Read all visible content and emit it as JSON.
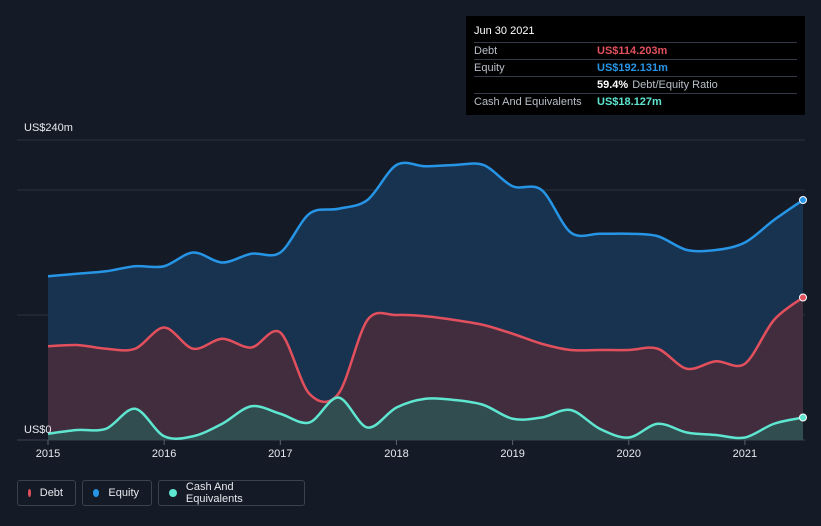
{
  "colors": {
    "debt": "#e2505d",
    "equity": "#2795e6",
    "cash": "#5ee6d0",
    "background": "#151b26",
    "grid": "#2a313d"
  },
  "tooltip": {
    "date": "Jun 30 2021",
    "debt_label": "Debt",
    "debt_value": "US$114.203m",
    "equity_label": "Equity",
    "equity_value": "US$192.131m",
    "ratio_value": "59.4%",
    "ratio_label": "Debt/Equity Ratio",
    "cash_label": "Cash And Equivalents",
    "cash_value": "US$18.127m"
  },
  "legend": {
    "debt": "Debt",
    "equity": "Equity",
    "cash": "Cash And Equivalents"
  },
  "chart_data": {
    "type": "area",
    "y_top_label": "US$240m",
    "y_bottom_label": "US$0",
    "ylim": [
      0,
      240
    ],
    "xlim": [
      2015.0,
      2021.5
    ],
    "x_ticks": [
      "2015",
      "2016",
      "2017",
      "2018",
      "2019",
      "2020",
      "2021"
    ],
    "series": [
      {
        "name": "Equity",
        "color": "#2795e6",
        "x": [
          2015.0,
          2015.25,
          2015.5,
          2015.75,
          2016.0,
          2016.25,
          2016.5,
          2016.75,
          2017.0,
          2017.25,
          2017.5,
          2017.75,
          2018.0,
          2018.25,
          2018.5,
          2018.75,
          2019.0,
          2019.25,
          2019.5,
          2019.75,
          2020.0,
          2020.25,
          2020.5,
          2020.75,
          2021.0,
          2021.25,
          2021.5
        ],
        "values": [
          131,
          133,
          135,
          139,
          139,
          150,
          142,
          149,
          150,
          181,
          185,
          192,
          220,
          219,
          220,
          220,
          203,
          200,
          166,
          165,
          165,
          163,
          152,
          152,
          158,
          176,
          192
        ]
      },
      {
        "name": "Debt",
        "color": "#e2505d",
        "x": [
          2015.0,
          2015.25,
          2015.5,
          2015.75,
          2016.0,
          2016.25,
          2016.5,
          2016.75,
          2017.0,
          2017.25,
          2017.5,
          2017.75,
          2018.0,
          2018.25,
          2018.5,
          2018.75,
          2019.0,
          2019.25,
          2019.5,
          2019.75,
          2020.0,
          2020.25,
          2020.5,
          2020.75,
          2021.0,
          2021.25,
          2021.5
        ],
        "values": [
          75,
          76,
          73,
          73,
          90,
          73,
          81,
          74,
          86,
          37,
          37,
          96,
          100,
          99,
          96,
          92,
          85,
          77,
          72,
          72,
          72,
          73,
          57,
          63,
          61,
          96,
          114
        ]
      },
      {
        "name": "Cash And Equivalents",
        "color": "#5ee6d0",
        "x": [
          2015.0,
          2015.25,
          2015.5,
          2015.75,
          2016.0,
          2016.25,
          2016.5,
          2016.75,
          2017.0,
          2017.25,
          2017.5,
          2017.75,
          2018.0,
          2018.25,
          2018.5,
          2018.75,
          2019.0,
          2019.25,
          2019.5,
          2019.75,
          2020.0,
          2020.25,
          2020.5,
          2020.75,
          2021.0,
          2021.25,
          2021.5
        ],
        "values": [
          5,
          8,
          9,
          25,
          3,
          3,
          13,
          27,
          21,
          14,
          34,
          10,
          26,
          33,
          32,
          28,
          17,
          18,
          24,
          9,
          2,
          13,
          6,
          4,
          2,
          13,
          18
        ]
      }
    ]
  }
}
